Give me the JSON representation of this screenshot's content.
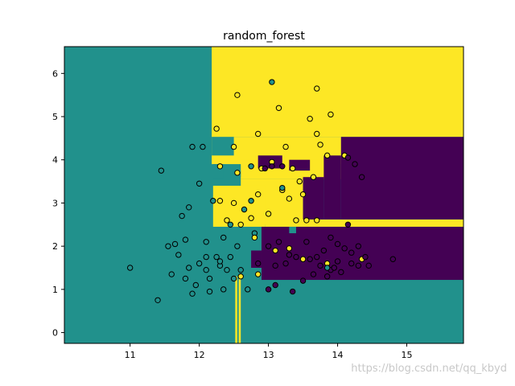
{
  "chart_data": {
    "type": "scatter",
    "title": "random_forest",
    "xlabel": "",
    "ylabel": "",
    "xlim": [
      10.05,
      15.82
    ],
    "ylim": [
      -0.25,
      6.62
    ],
    "xticks": [
      11,
      12,
      13,
      14,
      15
    ],
    "yticks": [
      0,
      1,
      2,
      3,
      4,
      5,
      6
    ],
    "class_colors": {
      "0": "#440154",
      "1": "#21918c",
      "2": "#fde725"
    },
    "decision_regions": [
      {
        "class": 1,
        "x": [
          10.05,
          15.82
        ],
        "y": [
          -0.25,
          6.62
        ]
      },
      {
        "class": 2,
        "x": [
          12.18,
          15.82
        ],
        "y": [
          4.53,
          6.62
        ]
      },
      {
        "class": 2,
        "x": [
          12.18,
          14.05
        ],
        "y": [
          3.9,
          4.53
        ]
      },
      {
        "class": 2,
        "x": [
          12.6,
          14.05
        ],
        "y": [
          3.55,
          4.0
        ]
      },
      {
        "class": 2,
        "x": [
          12.6,
          13.5
        ],
        "y": [
          2.5,
          3.55
        ]
      },
      {
        "class": 2,
        "x": [
          12.2,
          12.95
        ],
        "y": [
          2.45,
          3.4
        ]
      },
      {
        "class": 2,
        "x": [
          12.95,
          15.82
        ],
        "y": [
          2.45,
          2.62
        ]
      },
      {
        "class": 2,
        "x": [
          12.52,
          12.55
        ],
        "y": [
          -0.25,
          1.3
        ]
      },
      {
        "class": 2,
        "x": [
          12.57,
          12.6
        ],
        "y": [
          -0.25,
          1.3
        ]
      },
      {
        "class": 0,
        "x": [
          14.05,
          15.82
        ],
        "y": [
          2.62,
          4.53
        ]
      },
      {
        "class": 0,
        "x": [
          13.8,
          14.05
        ],
        "y": [
          2.62,
          4.1
        ]
      },
      {
        "class": 0,
        "x": [
          13.5,
          13.8
        ],
        "y": [
          2.62,
          3.6
        ]
      },
      {
        "class": 0,
        "x": [
          12.9,
          15.82
        ],
        "y": [
          1.22,
          2.45
        ]
      },
      {
        "class": 0,
        "x": [
          12.75,
          12.9
        ],
        "y": [
          1.5,
          1.9
        ]
      },
      {
        "class": 0,
        "x": [
          12.85,
          13.2
        ],
        "y": [
          3.8,
          4.1
        ]
      },
      {
        "class": 0,
        "x": [
          13.3,
          13.6
        ],
        "y": [
          3.75,
          4.0
        ]
      },
      {
        "class": 1,
        "x": [
          12.18,
          12.5
        ],
        "y": [
          4.1,
          4.53
        ]
      },
      {
        "class": 1,
        "x": [
          12.2,
          12.35
        ],
        "y": [
          3.55,
          3.9
        ]
      },
      {
        "class": 1,
        "x": [
          12.45,
          12.6
        ],
        "y": [
          3.6,
          3.75
        ]
      },
      {
        "class": 1,
        "x": [
          13.3,
          13.4
        ],
        "y": [
          2.3,
          2.45
        ]
      }
    ],
    "points": [
      {
        "x": 11.0,
        "y": 1.5,
        "class": 1
      },
      {
        "x": 11.4,
        "y": 0.75,
        "class": 1
      },
      {
        "x": 11.45,
        "y": 3.75,
        "class": 1
      },
      {
        "x": 11.55,
        "y": 2.0,
        "class": 1
      },
      {
        "x": 11.6,
        "y": 1.35,
        "class": 1
      },
      {
        "x": 11.65,
        "y": 2.05,
        "class": 1
      },
      {
        "x": 11.7,
        "y": 1.8,
        "class": 1
      },
      {
        "x": 11.8,
        "y": 2.15,
        "class": 1
      },
      {
        "x": 11.75,
        "y": 2.7,
        "class": 1
      },
      {
        "x": 11.85,
        "y": 2.9,
        "class": 1
      },
      {
        "x": 11.9,
        "y": 4.3,
        "class": 1
      },
      {
        "x": 11.85,
        "y": 1.5,
        "class": 1
      },
      {
        "x": 11.95,
        "y": 1.1,
        "class": 1
      },
      {
        "x": 12.0,
        "y": 3.45,
        "class": 1
      },
      {
        "x": 12.05,
        "y": 4.3,
        "class": 1
      },
      {
        "x": 12.0,
        "y": 1.6,
        "class": 1
      },
      {
        "x": 12.1,
        "y": 2.1,
        "class": 1
      },
      {
        "x": 12.1,
        "y": 1.45,
        "class": 1
      },
      {
        "x": 12.15,
        "y": 1.25,
        "class": 1
      },
      {
        "x": 12.2,
        "y": 3.05,
        "class": 1
      },
      {
        "x": 12.25,
        "y": 1.75,
        "class": 1
      },
      {
        "x": 12.3,
        "y": 1.55,
        "class": 1
      },
      {
        "x": 12.35,
        "y": 1.0,
        "class": 1
      },
      {
        "x": 12.35,
        "y": 2.2,
        "class": 1
      },
      {
        "x": 12.4,
        "y": 1.45,
        "class": 1
      },
      {
        "x": 12.45,
        "y": 1.75,
        "class": 1
      },
      {
        "x": 12.5,
        "y": 1.25,
        "class": 1
      },
      {
        "x": 12.55,
        "y": 2.0,
        "class": 1
      },
      {
        "x": 12.6,
        "y": 1.45,
        "class": 1
      },
      {
        "x": 12.7,
        "y": 1.0,
        "class": 1
      },
      {
        "x": 12.75,
        "y": 3.05,
        "class": 1
      },
      {
        "x": 12.8,
        "y": 2.3,
        "class": 1
      },
      {
        "x": 12.65,
        "y": 2.85,
        "class": 1
      },
      {
        "x": 12.15,
        "y": 0.95,
        "class": 1
      },
      {
        "x": 11.9,
        "y": 0.9,
        "class": 1
      },
      {
        "x": 12.45,
        "y": 2.5,
        "class": 1
      },
      {
        "x": 12.3,
        "y": 1.65,
        "class": 1
      },
      {
        "x": 11.8,
        "y": 1.25,
        "class": 1
      },
      {
        "x": 12.1,
        "y": 1.75,
        "class": 1
      },
      {
        "x": 12.25,
        "y": 4.72,
        "class": 2
      },
      {
        "x": 12.55,
        "y": 5.5,
        "class": 2
      },
      {
        "x": 12.85,
        "y": 4.6,
        "class": 2
      },
      {
        "x": 12.5,
        "y": 4.3,
        "class": 2
      },
      {
        "x": 13.15,
        "y": 5.2,
        "class": 2
      },
      {
        "x": 13.6,
        "y": 4.95,
        "class": 2
      },
      {
        "x": 13.7,
        "y": 5.65,
        "class": 2
      },
      {
        "x": 13.9,
        "y": 5.05,
        "class": 2
      },
      {
        "x": 13.7,
        "y": 4.6,
        "class": 2
      },
      {
        "x": 13.25,
        "y": 4.3,
        "class": 2
      },
      {
        "x": 13.75,
        "y": 4.35,
        "class": 2
      },
      {
        "x": 12.3,
        "y": 3.05,
        "class": 2
      },
      {
        "x": 12.5,
        "y": 3.0,
        "class": 2
      },
      {
        "x": 12.85,
        "y": 3.2,
        "class": 2
      },
      {
        "x": 12.75,
        "y": 2.65,
        "class": 2
      },
      {
        "x": 13.0,
        "y": 2.75,
        "class": 2
      },
      {
        "x": 13.2,
        "y": 3.3,
        "class": 2
      },
      {
        "x": 13.3,
        "y": 3.1,
        "class": 2
      },
      {
        "x": 13.5,
        "y": 3.2,
        "class": 2
      },
      {
        "x": 13.65,
        "y": 3.6,
        "class": 2
      },
      {
        "x": 13.4,
        "y": 2.6,
        "class": 2
      },
      {
        "x": 13.55,
        "y": 2.6,
        "class": 2
      },
      {
        "x": 13.7,
        "y": 2.6,
        "class": 2
      },
      {
        "x": 12.9,
        "y": 3.8,
        "class": 2
      },
      {
        "x": 13.35,
        "y": 3.8,
        "class": 2
      },
      {
        "x": 13.45,
        "y": 3.5,
        "class": 2
      },
      {
        "x": 12.3,
        "y": 3.85,
        "class": 2
      },
      {
        "x": 12.4,
        "y": 2.6,
        "class": 2
      },
      {
        "x": 12.6,
        "y": 2.5,
        "class": 2
      },
      {
        "x": 13.1,
        "y": 1.9,
        "class": 2
      },
      {
        "x": 13.5,
        "y": 1.7,
        "class": 2
      },
      {
        "x": 13.3,
        "y": 1.95,
        "class": 2
      },
      {
        "x": 14.35,
        "y": 1.7,
        "class": 2
      },
      {
        "x": 13.85,
        "y": 1.6,
        "class": 2
      },
      {
        "x": 12.6,
        "y": 1.3,
        "class": 2
      },
      {
        "x": 12.85,
        "y": 1.35,
        "class": 2
      },
      {
        "x": 12.8,
        "y": 2.2,
        "class": 2
      },
      {
        "x": 12.55,
        "y": 3.7,
        "class": 2
      },
      {
        "x": 13.05,
        "y": 3.95,
        "class": 2
      },
      {
        "x": 13.85,
        "y": 4.1,
        "class": 2
      },
      {
        "x": 14.1,
        "y": 4.1,
        "class": 2
      },
      {
        "x": 12.95,
        "y": 3.8,
        "class": 0
      },
      {
        "x": 13.05,
        "y": 3.85,
        "class": 0
      },
      {
        "x": 13.2,
        "y": 3.85,
        "class": 0
      },
      {
        "x": 14.15,
        "y": 4.05,
        "class": 0
      },
      {
        "x": 14.25,
        "y": 3.9,
        "class": 0
      },
      {
        "x": 14.35,
        "y": 3.6,
        "class": 0
      },
      {
        "x": 13.1,
        "y": 1.55,
        "class": 0
      },
      {
        "x": 13.25,
        "y": 1.6,
        "class": 0
      },
      {
        "x": 13.4,
        "y": 1.75,
        "class": 0
      },
      {
        "x": 13.6,
        "y": 1.7,
        "class": 0
      },
      {
        "x": 13.7,
        "y": 1.75,
        "class": 0
      },
      {
        "x": 13.75,
        "y": 1.55,
        "class": 0
      },
      {
        "x": 13.8,
        "y": 1.9,
        "class": 0
      },
      {
        "x": 13.9,
        "y": 1.45,
        "class": 0
      },
      {
        "x": 14.0,
        "y": 1.65,
        "class": 0
      },
      {
        "x": 14.1,
        "y": 1.95,
        "class": 0
      },
      {
        "x": 14.2,
        "y": 1.6,
        "class": 0
      },
      {
        "x": 14.3,
        "y": 2.0,
        "class": 0
      },
      {
        "x": 14.45,
        "y": 1.55,
        "class": 0
      },
      {
        "x": 14.8,
        "y": 1.7,
        "class": 0
      },
      {
        "x": 12.85,
        "y": 1.6,
        "class": 0
      },
      {
        "x": 13.0,
        "y": 2.0,
        "class": 0
      },
      {
        "x": 13.15,
        "y": 2.1,
        "class": 0
      },
      {
        "x": 13.3,
        "y": 1.8,
        "class": 0
      },
      {
        "x": 13.55,
        "y": 2.1,
        "class": 0
      },
      {
        "x": 13.9,
        "y": 2.2,
        "class": 0
      },
      {
        "x": 14.0,
        "y": 2.05,
        "class": 0
      },
      {
        "x": 14.15,
        "y": 2.5,
        "class": 0
      },
      {
        "x": 13.0,
        "y": 1.0,
        "class": 0
      },
      {
        "x": 13.1,
        "y": 1.1,
        "class": 0
      },
      {
        "x": 13.35,
        "y": 0.95,
        "class": 0
      },
      {
        "x": 13.5,
        "y": 1.2,
        "class": 0
      },
      {
        "x": 13.65,
        "y": 1.35,
        "class": 0
      },
      {
        "x": 13.85,
        "y": 1.3,
        "class": 0
      },
      {
        "x": 13.95,
        "y": 1.5,
        "class": 0
      },
      {
        "x": 14.05,
        "y": 1.4,
        "class": 0
      },
      {
        "x": 14.2,
        "y": 1.85,
        "class": 0
      },
      {
        "x": 14.3,
        "y": 1.55,
        "class": 0
      },
      {
        "x": 14.4,
        "y": 1.75,
        "class": 0
      },
      {
        "x": 13.05,
        "y": 5.8,
        "class": 1
      },
      {
        "x": 12.75,
        "y": 3.85,
        "class": 1
      },
      {
        "x": 13.85,
        "y": 1.5,
        "class": 1
      },
      {
        "x": 13.2,
        "y": 3.35,
        "class": 1
      }
    ]
  }
}
